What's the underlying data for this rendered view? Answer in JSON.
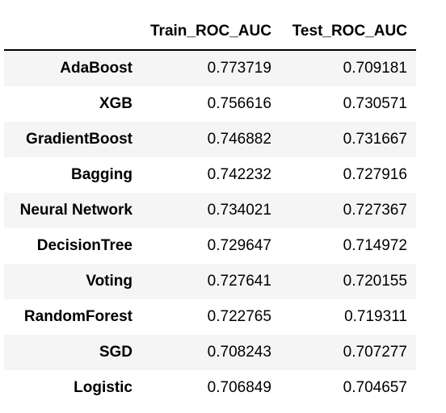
{
  "table": {
    "columns": [
      "Train_ROC_AUC",
      "Test_ROC_AUC"
    ],
    "rows": [
      {
        "index": "AdaBoost",
        "train": "0.773719",
        "test": "0.709181"
      },
      {
        "index": "XGB",
        "train": "0.756616",
        "test": "0.730571"
      },
      {
        "index": "GradientBoost",
        "train": "0.746882",
        "test": "0.731667"
      },
      {
        "index": "Bagging",
        "train": "0.742232",
        "test": "0.727916"
      },
      {
        "index": "Neural Network",
        "train": "0.734021",
        "test": "0.727367"
      },
      {
        "index": "DecisionTree",
        "train": "0.729647",
        "test": "0.714972"
      },
      {
        "index": "Voting",
        "train": "0.727641",
        "test": "0.720155"
      },
      {
        "index": "RandomForest",
        "train": "0.722765",
        "test": "0.719311"
      },
      {
        "index": "SGD",
        "train": "0.708243",
        "test": "0.707277"
      },
      {
        "index": "Logistic",
        "train": "0.706849",
        "test": "0.704657"
      }
    ]
  },
  "colors": {
    "stripe": "#f5f5f5",
    "header_rule": "#000000",
    "text": "#000000"
  }
}
